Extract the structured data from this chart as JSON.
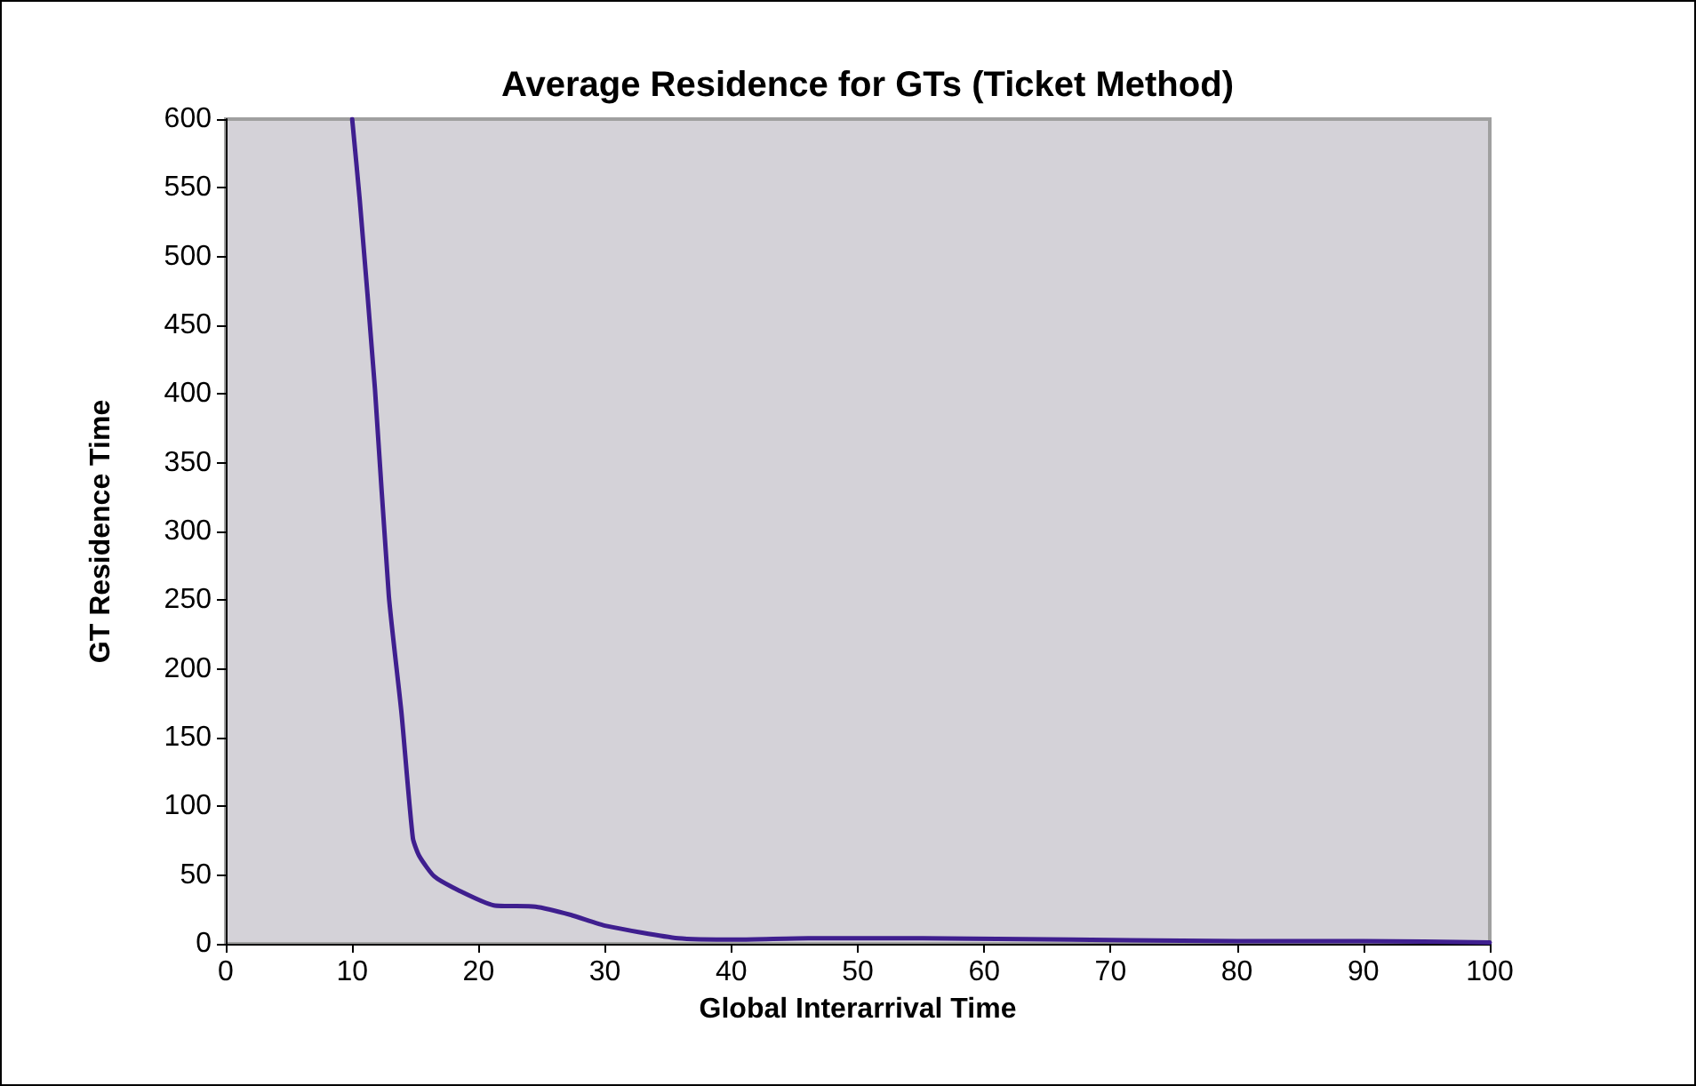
{
  "chart_data": {
    "type": "line",
    "title": "Average Residence for GTs (Ticket Method)",
    "xlabel": "Global Interarrival Time",
    "ylabel": "GT Residence Time",
    "x": [
      10,
      10.6,
      11.8,
      12.9,
      13.9,
      14.8,
      15.3,
      16.5,
      18.4,
      21.2,
      24.5,
      27.3,
      30.1,
      35.8,
      40.5,
      46.1,
      55.1,
      66.9,
      80,
      90,
      100
    ],
    "series": [
      {
        "color": "#3f1f8f",
        "values": [
          600,
          541,
          404,
          253,
          168,
          77,
          64,
          49,
          39,
          28,
          27,
          21,
          13,
          4,
          3,
          4,
          4,
          3,
          2,
          2,
          1
        ]
      }
    ],
    "xlim": [
      0,
      100
    ],
    "xticks": [
      0,
      10,
      20,
      30,
      40,
      50,
      60,
      70,
      80,
      90,
      100
    ],
    "ylim": [
      0,
      600
    ],
    "yticks": [
      0,
      50,
      100,
      150,
      200,
      250,
      300,
      350,
      400,
      450,
      500,
      550,
      600
    ],
    "grid": false,
    "marker": "none",
    "line_style": "solid"
  }
}
